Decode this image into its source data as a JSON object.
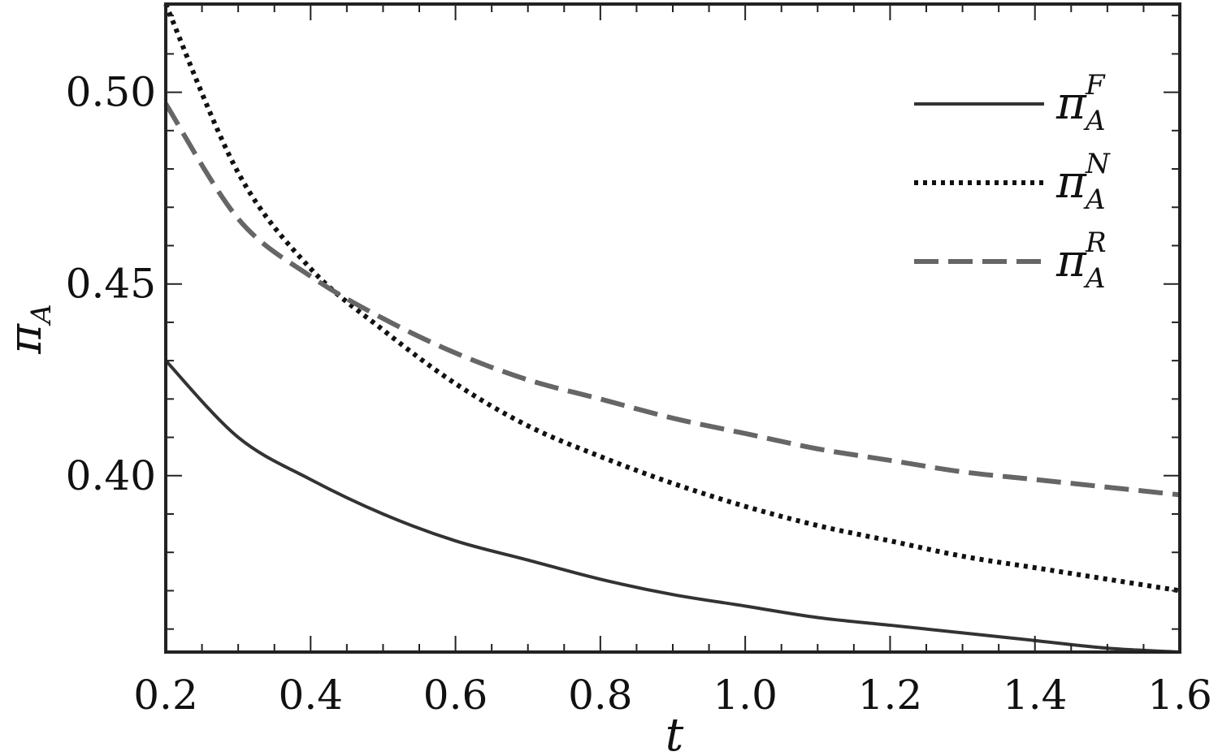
{
  "chart_data": {
    "type": "line",
    "xlabel": "t",
    "ylabel": {
      "symbol": "π",
      "subscript": "A"
    },
    "xlim": [
      0.2,
      1.6
    ],
    "ylim": [
      0.354,
      0.523
    ],
    "xticks": [
      0.2,
      0.4,
      0.6,
      0.8,
      1.0,
      1.2,
      1.4,
      1.6
    ],
    "xtick_labels": [
      "0.2",
      "0.4",
      "0.6",
      "0.8",
      "1.0",
      "1.2",
      "1.4",
      "1.6"
    ],
    "yticks": [
      0.4,
      0.45,
      0.5
    ],
    "ytick_labels": [
      "0.40",
      "0.45",
      "0.50"
    ],
    "grid": false,
    "legend_position": "top-right",
    "series": [
      {
        "name": "F",
        "legend": {
          "symbol": "π",
          "subscript": "A",
          "superscript": "F"
        },
        "style": "solid",
        "color": "#333333",
        "x": [
          0.2,
          0.3,
          0.4,
          0.5,
          0.6,
          0.7,
          0.8,
          0.9,
          1.0,
          1.1,
          1.2,
          1.3,
          1.4,
          1.5,
          1.6
        ],
        "y": [
          0.43,
          0.41,
          0.399,
          0.39,
          0.383,
          0.378,
          0.373,
          0.369,
          0.366,
          0.363,
          0.361,
          0.359,
          0.357,
          0.355,
          0.354
        ]
      },
      {
        "name": "N",
        "legend": {
          "symbol": "π",
          "subscript": "A",
          "superscript": "N"
        },
        "style": "dotted",
        "color": "#111111",
        "x": [
          0.2,
          0.3,
          0.4,
          0.5,
          0.6,
          0.7,
          0.8,
          0.9,
          1.0,
          1.1,
          1.2,
          1.3,
          1.4,
          1.5,
          1.6
        ],
        "y": [
          0.523,
          0.479,
          0.454,
          0.438,
          0.424,
          0.413,
          0.405,
          0.398,
          0.392,
          0.387,
          0.383,
          0.379,
          0.376,
          0.373,
          0.37
        ]
      },
      {
        "name": "R",
        "legend": {
          "symbol": "π",
          "subscript": "A",
          "superscript": "R"
        },
        "style": "dashed",
        "color": "#666666",
        "x": [
          0.2,
          0.3,
          0.4,
          0.5,
          0.6,
          0.7,
          0.8,
          0.9,
          1.0,
          1.1,
          1.2,
          1.3,
          1.4,
          1.5,
          1.6
        ],
        "y": [
          0.497,
          0.467,
          0.452,
          0.441,
          0.432,
          0.425,
          0.42,
          0.415,
          0.411,
          0.407,
          0.404,
          0.401,
          0.399,
          0.397,
          0.395
        ]
      }
    ]
  }
}
